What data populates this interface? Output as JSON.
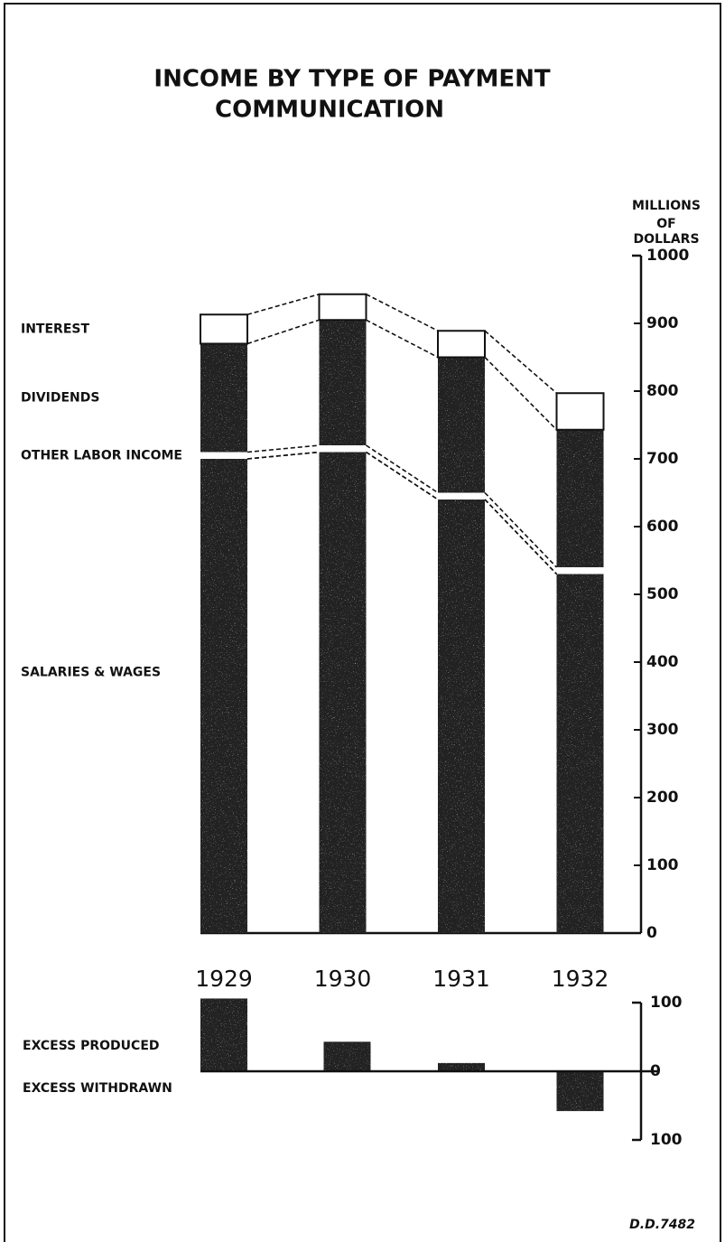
{
  "chart_data": [
    {
      "type": "stacked_bar",
      "title": "INCOME BY TYPE OF PAYMENT",
      "subtitle": "COMMUNICATION",
      "y_label": [
        "MILLIONS",
        "OF",
        "DOLLARS"
      ],
      "categories": [
        "1929",
        "1930",
        "1931",
        "1932"
      ],
      "series": [
        {
          "name": "SALARIES & WAGES",
          "color": "#222222",
          "values": [
            700,
            710,
            640,
            530
          ]
        },
        {
          "name": "OTHER LABOR INCOME",
          "color": "#ffffff",
          "values": [
            10,
            10,
            10,
            10
          ]
        },
        {
          "name": "DIVIDENDS",
          "color": "#222222",
          "values": [
            160,
            185,
            200,
            203
          ]
        },
        {
          "name": "INTEREST",
          "color": "#ffffff",
          "values": [
            43,
            38,
            39,
            54
          ]
        }
      ],
      "ylim": [
        0,
        1000
      ],
      "yticks": [
        0,
        100,
        200,
        300,
        400,
        500,
        600,
        700,
        800,
        900,
        1000
      ],
      "annotations": [
        "D.D.7482"
      ]
    },
    {
      "type": "bar",
      "values": [
        106,
        43,
        12,
        -58
      ],
      "color": "#222222",
      "ylim": [
        -100,
        100
      ],
      "yticks": [
        {
          "value": -100,
          "label": "100"
        },
        0,
        100
      ],
      "annotations": [
        "EXCESS PRODUCED",
        "EXCESS WITHDRAWN"
      ]
    }
  ]
}
